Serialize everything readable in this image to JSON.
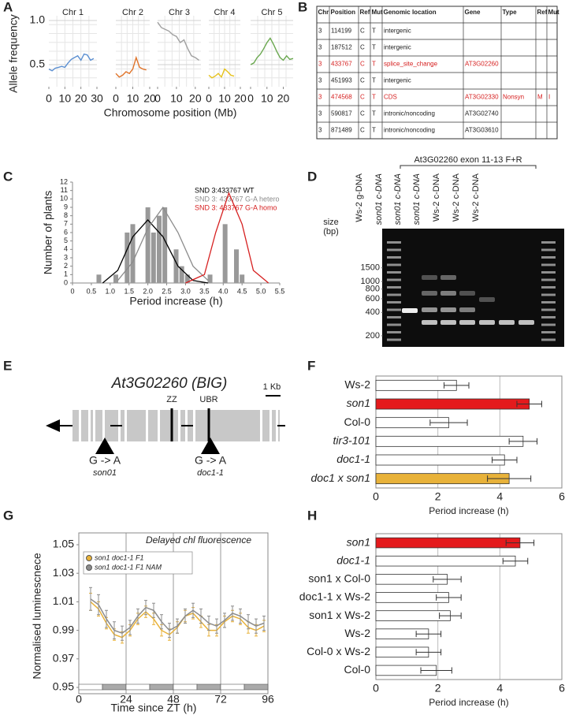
{
  "chart_data": [
    {
      "type": "facets",
      "panel": "A",
      "ylabel": "Allele frequency",
      "xlabel": "Chromosome position (Mb)",
      "ylim": [
        0.25,
        1.0
      ],
      "yticks": [
        0.5,
        {
          "value": 1.0,
          "label": "1.0"
        }
      ],
      "grid": true,
      "series": [
        {
          "name": "Chr 1",
          "color": "#5b8fd1",
          "xlim": [
            0,
            30
          ],
          "xticks": [
            0,
            10,
            20,
            30
          ],
          "x": [
            0,
            2,
            4,
            6,
            8,
            10,
            12,
            14,
            16,
            18,
            20,
            22,
            24,
            26,
            28
          ],
          "values": [
            0.45,
            0.43,
            0.46,
            0.47,
            0.48,
            0.47,
            0.52,
            0.56,
            0.58,
            0.6,
            0.55,
            0.62,
            0.61,
            0.55,
            0.57
          ]
        },
        {
          "name": "Chr 2",
          "color": "#e0742a",
          "xlim": [
            0,
            20
          ],
          "xticks": [
            0,
            10,
            20
          ],
          "x": [
            0,
            2,
            4,
            6,
            8,
            10,
            12,
            14,
            16,
            18
          ],
          "values": [
            0.4,
            0.36,
            0.38,
            0.42,
            0.4,
            0.45,
            0.58,
            0.47,
            0.45,
            0.44
          ]
        },
        {
          "name": "Chr 3",
          "color": "#a0a0a0",
          "xlim": [
            0,
            23
          ],
          "xticks": [
            0,
            10,
            20
          ],
          "x": [
            0,
            2,
            4,
            6,
            8,
            10,
            12,
            14,
            16,
            18,
            20,
            22
          ],
          "values": [
            0.98,
            0.92,
            0.9,
            0.88,
            0.84,
            0.82,
            0.75,
            0.78,
            0.68,
            0.6,
            0.58,
            0.55
          ]
        },
        {
          "name": "Chr 4",
          "color": "#e6c21a",
          "xlim": [
            0,
            20
          ],
          "xticks": [
            0,
            10,
            20
          ],
          "x": [
            0,
            2,
            4,
            6,
            8,
            10,
            12,
            14,
            16
          ],
          "values": [
            0.38,
            0.35,
            0.37,
            0.4,
            0.36,
            0.45,
            0.42,
            0.38,
            0.37
          ]
        },
        {
          "name": "Chr 5",
          "color": "#6aa84f",
          "xlim": [
            0,
            26
          ],
          "xticks": [
            0,
            10,
            20
          ],
          "x": [
            0,
            2,
            4,
            6,
            8,
            10,
            12,
            14,
            16,
            18,
            20,
            22,
            24,
            26
          ],
          "values": [
            0.5,
            0.52,
            0.58,
            0.62,
            0.68,
            0.75,
            0.8,
            0.73,
            0.65,
            0.58,
            0.55,
            0.6,
            0.56,
            0.57
          ]
        }
      ]
    },
    {
      "type": "histline",
      "panel": "C",
      "ylabel": "Number of plants",
      "xlabel": "Period increase (h)",
      "xlim": [
        0,
        5.5
      ],
      "xticks": [
        0,
        0.5,
        {
          "value": 1,
          "label": "1.0"
        },
        1.5,
        {
          "value": 2,
          "label": "2.0"
        },
        2.5,
        {
          "value": 3,
          "label": "3.0"
        },
        3.5,
        {
          "value": 4,
          "label": "4.0"
        },
        4.5,
        {
          "value": 5,
          "label": "5.0"
        },
        5.5
      ],
      "ylim": [
        0,
        12
      ],
      "yticks": [
        0,
        1,
        2,
        3,
        4,
        5,
        6,
        7,
        8,
        9,
        10,
        11,
        12
      ],
      "bars": {
        "color": "#999999",
        "x": [
          0.7,
          1.15,
          1.45,
          1.6,
          2.0,
          2.15,
          2.3,
          2.45,
          2.75,
          2.9,
          3.05,
          3.65,
          4.05,
          4.35,
          4.5
        ],
        "values": [
          1,
          1,
          6,
          7,
          9,
          6,
          8,
          9,
          4,
          2,
          1,
          1,
          7,
          4,
          1
        ]
      },
      "series": [
        {
          "name": "SND 3:433767 WT",
          "color": "#000000",
          "x": [
            0.8,
            1.2,
            1.6,
            2.0,
            2.4,
            2.8,
            3.2,
            3.6
          ],
          "values": [
            0,
            1.5,
            5.5,
            7.5,
            5.5,
            2,
            0.3,
            0
          ]
        },
        {
          "name": "SND 3: 433767 G-A hetero",
          "color": "#8c8c8c",
          "x": [
            1.2,
            1.6,
            2.0,
            2.4,
            2.8,
            3.2,
            3.6
          ],
          "values": [
            0.3,
            2.5,
            6.5,
            9,
            6,
            2,
            0.3
          ]
        },
        {
          "name": "SND 3: 433767 G-A homo",
          "color": "#d62020",
          "x": [
            3.0,
            3.5,
            3.8,
            4.15,
            4.5,
            4.8,
            5.2
          ],
          "values": [
            0,
            1,
            6,
            10.7,
            7,
            1.5,
            0
          ]
        }
      ]
    },
    {
      "type": "hbar",
      "panel": "F",
      "xlabel": "Period increase (h)",
      "xlim": [
        0,
        6
      ],
      "xticks": [
        0,
        2,
        4,
        6
      ],
      "grid": true,
      "categories": [
        "Ws-2",
        "son1",
        "Col-0",
        "tir3-101",
        "doc1-1",
        "doc1 x son1"
      ],
      "values": [
        2.6,
        4.95,
        2.35,
        4.75,
        4.15,
        4.3
      ],
      "errors": [
        0.4,
        0.4,
        0.6,
        0.45,
        0.4,
        0.7
      ],
      "colors": [
        "#ffffff",
        "#e41a1c",
        "#ffffff",
        "#ffffff",
        "#ffffff",
        "#e8b23a"
      ]
    },
    {
      "type": "errline",
      "panel": "G",
      "title": "Delayed chl fluorescence",
      "ylabel": "Normalised luminescnece",
      "xlabel": "Time since ZT (h)",
      "xlim": [
        0,
        96
      ],
      "xticks": [
        0,
        24,
        48,
        72,
        96
      ],
      "ylim": [
        0.95,
        1.05
      ],
      "yticks": [
        0.95,
        0.97,
        0.99,
        1.01,
        1.03,
        1.05
      ],
      "grid": true,
      "series": [
        {
          "name": "son1 doc1-1 F1",
          "color": "#e8b23a",
          "x": [
            6,
            10,
            14,
            18,
            22,
            26,
            30,
            34,
            38,
            42,
            46,
            50,
            54,
            58,
            62,
            66,
            70,
            74,
            78,
            82,
            86,
            90,
            94
          ],
          "values": [
            1.01,
            1.005,
            0.995,
            0.987,
            0.985,
            0.99,
            0.998,
            1.003,
            0.998,
            0.99,
            0.987,
            0.992,
            1.0,
            1.002,
            0.996,
            0.99,
            0.99,
            0.996,
            1.0,
            0.998,
            0.992,
            0.99,
            0.993
          ],
          "errors": [
            0.006,
            0.005,
            0.004,
            0.004,
            0.004,
            0.004,
            0.004,
            0.004,
            0.004,
            0.004,
            0.004,
            0.004,
            0.004,
            0.004,
            0.004,
            0.004,
            0.004,
            0.004,
            0.004,
            0.004,
            0.004,
            0.004,
            0.004
          ]
        },
        {
          "name": "son1 doc1-1 F1 NAM",
          "color": "#8c8c8c",
          "x": [
            6,
            10,
            14,
            18,
            22,
            26,
            30,
            34,
            38,
            42,
            46,
            50,
            54,
            58,
            62,
            66,
            70,
            74,
            78,
            82,
            86,
            90,
            94
          ],
          "values": [
            1.012,
            1.008,
            0.998,
            0.99,
            0.988,
            0.992,
            1.0,
            1.006,
            1.004,
            0.996,
            0.99,
            0.993,
            1.0,
            1.004,
            1.0,
            0.995,
            0.993,
            0.997,
            1.002,
            1.0,
            0.996,
            0.993,
            0.995
          ],
          "errors": [
            0.008,
            0.007,
            0.006,
            0.006,
            0.005,
            0.005,
            0.005,
            0.005,
            0.005,
            0.005,
            0.005,
            0.005,
            0.005,
            0.005,
            0.005,
            0.005,
            0.005,
            0.005,
            0.005,
            0.005,
            0.005,
            0.005,
            0.005
          ]
        }
      ]
    },
    {
      "type": "hbar",
      "panel": "H",
      "xlabel": "Period increase (h)",
      "xlim": [
        0,
        6
      ],
      "xticks": [
        0,
        2,
        4,
        6
      ],
      "grid": true,
      "categories": [
        "son1",
        "doc1-1",
        "son1 x Col-0",
        "doc1-1 x Ws-2",
        "son1 x Ws-2",
        "Ws-2",
        "Col-0 x Ws-2",
        "Col-0"
      ],
      "values": [
        4.65,
        4.5,
        2.3,
        2.35,
        2.4,
        1.7,
        1.7,
        1.95
      ],
      "errors": [
        0.45,
        0.4,
        0.45,
        0.4,
        0.35,
        0.4,
        0.4,
        0.5
      ],
      "colors": [
        "#e41a1c",
        "#ffffff",
        "#ffffff",
        "#ffffff",
        "#ffffff",
        "#ffffff",
        "#ffffff",
        "#ffffff"
      ]
    }
  ],
  "table": {
    "panel": "B",
    "highlight_color": "#d62020",
    "highlight_rows": [
      2,
      4
    ],
    "header": [
      "Chr",
      "Position",
      "Ref",
      "Mut",
      "Genomic location",
      "Gene",
      "Type",
      "Ref",
      "Mut"
    ],
    "rows": [
      [
        "3",
        "114199",
        "C",
        "T",
        "intergenic"
      ],
      [
        "3",
        "187512",
        "C",
        "T",
        "intergenic"
      ],
      [
        "3",
        "433767",
        "C",
        "T",
        "splice_site_change",
        "AT3G02260"
      ],
      [
        "3",
        "451993",
        "C",
        "T",
        "intergenic"
      ],
      [
        "3",
        "474568",
        "C",
        "T",
        "CDS",
        "AT3G02330",
        "Nonsyn",
        "M",
        "I"
      ],
      [
        "3",
        "590817",
        "C",
        "T",
        "intronic/noncoding",
        "AT3G02740"
      ],
      [
        "3",
        "871489",
        "C",
        "T",
        "intronic/noncoding",
        "AT3G03610"
      ]
    ]
  },
  "gel": {
    "panel": "D",
    "title": "At3G02260 exon 11-13 F+R",
    "lanes": [
      "Ws-2 g-DNA",
      "son01 c-DNA",
      "son01 c-DNA",
      "son01 c-DNA",
      "Ws-2 c-DNA",
      "Ws-2 c-DNA",
      "Ws-2 c-DNA"
    ],
    "size_label": [
      "size",
      "(bp)"
    ],
    "log": true,
    "ylim": [
      144,
      4800
    ],
    "sizes": [
      1500,
      1000,
      800,
      600,
      400,
      200
    ]
  },
  "gene": {
    "panel": "E",
    "title": "At3G02260 (BIG)",
    "scale": "1 Kb",
    "domains": [
      "ZZ",
      "UBR"
    ],
    "mutations": [
      {
        "change": "G -> A",
        "allele": "son01"
      },
      {
        "change": "G -> A",
        "allele": "doc1-1"
      }
    ]
  }
}
